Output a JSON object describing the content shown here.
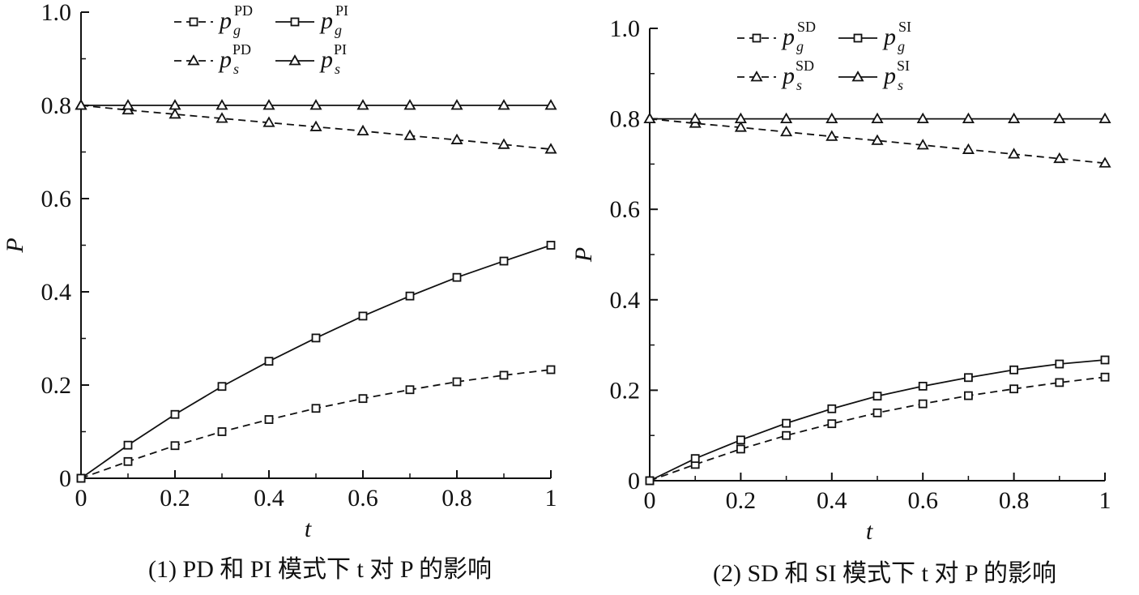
{
  "chart_data": [
    {
      "type": "line",
      "panel": "left",
      "caption": "(1) PD 和 PI 模式下 t 对 P 的影响",
      "xlabel": "t",
      "ylabel": "P",
      "xlim": [
        0,
        1
      ],
      "ylim": [
        0,
        1.0
      ],
      "xticks": [
        "0",
        "0.2",
        "0.4",
        "0.6",
        "0.8",
        "1"
      ],
      "yticks": [
        "0",
        "0.2",
        "0.4",
        "0.6",
        "0.8",
        "1.0"
      ],
      "x": [
        0,
        0.1,
        0.2,
        0.3,
        0.4,
        0.5,
        0.6,
        0.7,
        0.8,
        0.9,
        1.0
      ],
      "legend": [
        {
          "var": "p",
          "sub": "g",
          "sup": "PD",
          "marker": "square",
          "dash": true
        },
        {
          "var": "p",
          "sub": "g",
          "sup": "PI",
          "marker": "square",
          "dash": false
        },
        {
          "var": "p",
          "sub": "s",
          "sup": "PD",
          "marker": "triangle",
          "dash": true
        },
        {
          "var": "p",
          "sub": "s",
          "sup": "PI",
          "marker": "triangle",
          "dash": false
        }
      ],
      "series": [
        {
          "name": "p_g^PD",
          "marker": "square",
          "dash": true,
          "values": [
            0,
            0.036,
            0.07,
            0.1,
            0.126,
            0.15,
            0.171,
            0.19,
            0.207,
            0.221,
            0.233
          ]
        },
        {
          "name": "p_g^PI",
          "marker": "square",
          "dash": false,
          "values": [
            0,
            0.071,
            0.137,
            0.197,
            0.251,
            0.301,
            0.348,
            0.391,
            0.431,
            0.466,
            0.5
          ]
        },
        {
          "name": "p_s^PD",
          "marker": "triangle",
          "dash": true,
          "values": [
            0.8,
            0.79,
            0.781,
            0.772,
            0.763,
            0.754,
            0.745,
            0.735,
            0.726,
            0.716,
            0.706
          ]
        },
        {
          "name": "p_s^PI",
          "marker": "triangle",
          "dash": false,
          "values": [
            0.8,
            0.8,
            0.8,
            0.8,
            0.8,
            0.8,
            0.8,
            0.8,
            0.8,
            0.8,
            0.8
          ]
        }
      ]
    },
    {
      "type": "line",
      "panel": "right",
      "caption": "(2) SD 和 SI 模式下 t 对 P 的影响",
      "xlabel": "t",
      "ylabel": "P",
      "xlim": [
        0,
        1
      ],
      "ylim": [
        0,
        1.0
      ],
      "xticks": [
        "0",
        "0.2",
        "0.4",
        "0.6",
        "0.8",
        "1"
      ],
      "yticks": [
        "0",
        "0.2",
        "0.4",
        "0.6",
        "0.8",
        "1.0"
      ],
      "x": [
        0,
        0.1,
        0.2,
        0.3,
        0.4,
        0.5,
        0.6,
        0.7,
        0.8,
        0.9,
        1.0
      ],
      "legend": [
        {
          "var": "p",
          "sub": "g",
          "sup": "SD",
          "marker": "square",
          "dash": true
        },
        {
          "var": "p",
          "sub": "g",
          "sup": "SI",
          "marker": "square",
          "dash": false
        },
        {
          "var": "p",
          "sub": "s",
          "sup": "SD",
          "marker": "triangle",
          "dash": true
        },
        {
          "var": "p",
          "sub": "s",
          "sup": "SI",
          "marker": "triangle",
          "dash": false
        }
      ],
      "series": [
        {
          "name": "p_g^SD",
          "marker": "square",
          "dash": true,
          "values": [
            0,
            0.036,
            0.07,
            0.1,
            0.126,
            0.15,
            0.17,
            0.188,
            0.203,
            0.217,
            0.229
          ]
        },
        {
          "name": "p_g^SI",
          "marker": "square",
          "dash": false,
          "values": [
            0,
            0.049,
            0.09,
            0.127,
            0.159,
            0.187,
            0.209,
            0.228,
            0.245,
            0.258,
            0.267
          ]
        },
        {
          "name": "p_s^SD",
          "marker": "triangle",
          "dash": true,
          "values": [
            0.8,
            0.79,
            0.781,
            0.771,
            0.761,
            0.752,
            0.742,
            0.732,
            0.722,
            0.712,
            0.702
          ]
        },
        {
          "name": "p_s^SI",
          "marker": "triangle",
          "dash": false,
          "values": [
            0.8,
            0.8,
            0.8,
            0.8,
            0.8,
            0.8,
            0.8,
            0.8,
            0.8,
            0.8,
            0.8
          ]
        }
      ]
    }
  ]
}
